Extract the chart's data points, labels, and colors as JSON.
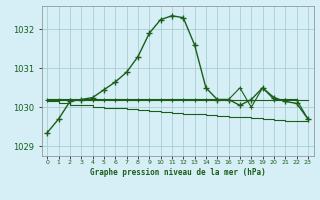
{
  "xlabel": "Graphe pression niveau de la mer (hPa)",
  "bg_color": "#d6eef5",
  "plot_bg_color": "#d6eef5",
  "line_color": "#1a5e1a",
  "grid_color": "#a0c8cc",
  "text_color": "#1a5e1a",
  "ylim": [
    1028.75,
    1032.6
  ],
  "yticks": [
    1029,
    1030,
    1031,
    1032
  ],
  "xlim": [
    -0.5,
    23.5
  ],
  "xticks": [
    0,
    1,
    2,
    3,
    4,
    5,
    6,
    7,
    8,
    9,
    10,
    11,
    12,
    13,
    14,
    15,
    16,
    17,
    18,
    19,
    20,
    21,
    22,
    23
  ],
  "hours": [
    0,
    1,
    2,
    3,
    4,
    5,
    6,
    7,
    8,
    9,
    10,
    11,
    12,
    13,
    14,
    15,
    16,
    17,
    18,
    19,
    20,
    21,
    22,
    23
  ],
  "line_peak": [
    1029.35,
    1029.7,
    1030.15,
    1030.2,
    1030.25,
    1030.45,
    1030.65,
    1030.9,
    1031.3,
    1031.9,
    1032.25,
    1032.35,
    1032.3,
    1031.6,
    1030.5,
    1030.2,
    1030.2,
    1030.05,
    1030.2,
    1030.5,
    1030.25,
    1030.15,
    1030.1,
    1029.7
  ],
  "line_upper_flat": [
    1030.2,
    1030.2,
    1030.2,
    1030.2,
    1030.2,
    1030.2,
    1030.2,
    1030.2,
    1030.2,
    1030.2,
    1030.2,
    1030.2,
    1030.2,
    1030.2,
    1030.2,
    1030.2,
    1030.2,
    1030.2,
    1030.2,
    1030.2,
    1030.2,
    1030.2,
    1030.2,
    1030.2
  ],
  "line_vshape": [
    1030.2,
    1030.2,
    1030.2,
    1030.2,
    1030.2,
    1030.2,
    1030.2,
    1030.2,
    1030.2,
    1030.2,
    1030.2,
    1030.2,
    1030.2,
    1030.2,
    1030.2,
    1030.2,
    1030.2,
    1030.5,
    1030.0,
    1030.5,
    1030.2,
    1030.2,
    1030.2,
    1029.7
  ],
  "line_lower_step": [
    1030.15,
    1030.1,
    1030.05,
    1030.05,
    1030.0,
    1029.99,
    1029.97,
    1029.95,
    1029.93,
    1029.9,
    1029.88,
    1029.86,
    1029.84,
    1029.82,
    1029.8,
    1029.78,
    1029.76,
    1029.74,
    1029.72,
    1029.7,
    1029.68,
    1029.65,
    1029.65,
    1029.65
  ]
}
